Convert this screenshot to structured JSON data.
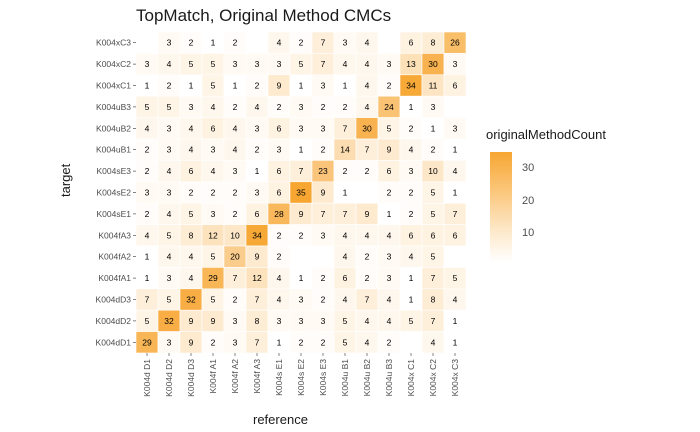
{
  "chart_data": {
    "type": "heatmap",
    "title": "TopMatch, Original Method CMCs",
    "xlabel": "reference",
    "ylabel": "target",
    "x_categories": [
      "K004d D1",
      "K004d D2",
      "K004d D3",
      "K004f A1",
      "K004f A2",
      "K004f A3",
      "K004s E1",
      "K004s E2",
      "K004s E3",
      "K004u B1",
      "K004u B2",
      "K004u B3",
      "K004x C1",
      "K004x C2",
      "K004x C3"
    ],
    "y_categories": [
      "K004xC3",
      "K004xC2",
      "K004xC1",
      "K004uB3",
      "K004uB2",
      "K004uB1",
      "K004sE3",
      "K004sE2",
      "K004sE1",
      "K004fA3",
      "K004fA2",
      "K004fA1",
      "K004dD3",
      "K004dD2",
      "K004dD1"
    ],
    "values": [
      [
        null,
        3,
        2,
        1,
        2,
        null,
        4,
        2,
        7,
        3,
        4,
        null,
        6,
        8,
        26
      ],
      [
        3,
        4,
        5,
        5,
        3,
        3,
        3,
        5,
        7,
        4,
        4,
        3,
        13,
        30,
        3
      ],
      [
        1,
        2,
        1,
        5,
        1,
        2,
        9,
        1,
        3,
        1,
        4,
        2,
        34,
        11,
        6
      ],
      [
        5,
        5,
        3,
        4,
        2,
        4,
        2,
        3,
        2,
        2,
        4,
        24,
        1,
        3,
        null
      ],
      [
        4,
        3,
        4,
        6,
        4,
        3,
        6,
        3,
        3,
        7,
        30,
        5,
        2,
        1,
        3
      ],
      [
        2,
        3,
        4,
        3,
        4,
        2,
        3,
        1,
        2,
        14,
        7,
        9,
        4,
        2,
        1
      ],
      [
        2,
        4,
        6,
        4,
        3,
        1,
        6,
        7,
        23,
        2,
        2,
        6,
        3,
        10,
        4
      ],
      [
        3,
        3,
        2,
        2,
        2,
        3,
        6,
        35,
        9,
        1,
        null,
        2,
        2,
        5,
        1
      ],
      [
        2,
        4,
        5,
        3,
        2,
        6,
        28,
        9,
        7,
        7,
        9,
        1,
        2,
        5,
        7
      ],
      [
        4,
        5,
        8,
        12,
        10,
        34,
        2,
        2,
        3,
        4,
        4,
        4,
        6,
        6,
        6
      ],
      [
        1,
        4,
        4,
        5,
        20,
        9,
        2,
        null,
        null,
        4,
        2,
        3,
        4,
        5,
        null
      ],
      [
        1,
        3,
        4,
        29,
        7,
        12,
        4,
        1,
        2,
        6,
        2,
        3,
        1,
        7,
        5
      ],
      [
        7,
        5,
        32,
        5,
        2,
        7,
        4,
        3,
        2,
        4,
        7,
        4,
        1,
        8,
        4
      ],
      [
        5,
        32,
        9,
        9,
        3,
        8,
        3,
        3,
        3,
        5,
        4,
        4,
        5,
        7,
        1
      ],
      [
        29,
        3,
        9,
        2,
        3,
        7,
        1,
        2,
        2,
        5,
        4,
        2,
        null,
        4,
        1
      ]
    ],
    "legend": {
      "title": "originalMethodCount",
      "ticks": [
        10,
        20,
        30
      ],
      "range": [
        1,
        35
      ],
      "low_color": "#ffffff",
      "high_color": "#f7a632"
    },
    "grid": false,
    "legend_position": "right"
  }
}
